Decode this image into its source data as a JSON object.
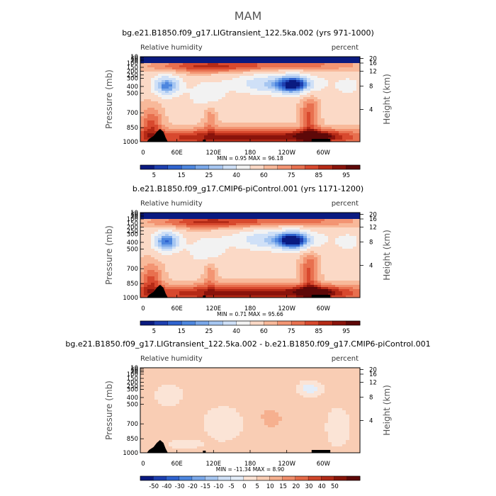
{
  "figure": {
    "title": "MAM"
  },
  "colors": {
    "rh_palette": [
      "#0a1a80",
      "#1d3fb0",
      "#2f63cf",
      "#4d86df",
      "#7aa8ea",
      "#a6c6f1",
      "#cfe0f7",
      "#f2f2f2",
      "#fbd9c6",
      "#f8b99a",
      "#f39573",
      "#e8704f",
      "#d8492e",
      "#b52a16",
      "#8a130b",
      "#5e0808"
    ],
    "diff_palette": [
      "#0a1a80",
      "#1d3fb0",
      "#2f63cf",
      "#4d86df",
      "#7aa8ea",
      "#a6c6f1",
      "#cfe0f7",
      "#e3edf9",
      "#fbe4d6",
      "#f9cdb4",
      "#f6b08f",
      "#f08e6b",
      "#e46a48",
      "#cf452a",
      "#b02a17",
      "#861409",
      "#5e0808"
    ]
  },
  "chart_data": [
    {
      "type": "heatmap",
      "title": "bg.e21.B1850.f09_g17.LIGtransient_122.5ka.002 (yrs 971-1000)",
      "left_label": "Relative humidity",
      "right_label": "percent",
      "ylabel": "Pressure (mb)",
      "y2label": "Height (km)",
      "xticks": [
        "0",
        "60E",
        "120E",
        "180",
        "120W",
        "60W"
      ],
      "yticks": [
        "10",
        "30",
        "50",
        "70",
        "100",
        "150",
        "200",
        "250",
        "300",
        "400",
        "500",
        "700",
        "850",
        "1000"
      ],
      "y2ticks": [
        "20",
        "16",
        "12",
        "8",
        "4"
      ],
      "min_label": "MIN =",
      "min_value": "0.95",
      "max_label": "MAX =",
      "max_value": "96.18",
      "colorbar_labels": [
        "5",
        "15",
        "25",
        "40",
        "60",
        "75",
        "85",
        "95"
      ],
      "palette": "rh",
      "variant": "lig"
    },
    {
      "type": "heatmap",
      "title": "b.e21.B1850.f09_g17.CMIP6-piControl.001 (yrs 1171-1200)",
      "left_label": "Relative humidity",
      "right_label": "percent",
      "ylabel": "Pressure (mb)",
      "y2label": "Height (km)",
      "xticks": [
        "0",
        "60E",
        "120E",
        "180",
        "120W",
        "60W"
      ],
      "yticks": [
        "10",
        "30",
        "50",
        "70",
        "100",
        "150",
        "200",
        "250",
        "300",
        "400",
        "500",
        "700",
        "850",
        "1000"
      ],
      "y2ticks": [
        "20",
        "16",
        "12",
        "8",
        "4"
      ],
      "min_label": "MIN =",
      "min_value": "0.71",
      "max_label": "MAX =",
      "max_value": "95.66",
      "colorbar_labels": [
        "5",
        "15",
        "25",
        "40",
        "60",
        "75",
        "85",
        "95"
      ],
      "palette": "rh",
      "variant": "pi"
    },
    {
      "type": "heatmap",
      "title": "bg.e21.B1850.f09_g17.LIGtransient_122.5ka.002 - b.e21.B1850.f09_g17.CMIP6-piControl.001",
      "left_label": "Relative humidity",
      "right_label": "percent",
      "ylabel": "Pressure (mb)",
      "y2label": "Height (km)",
      "xticks": [
        "0",
        "60E",
        "120E",
        "180",
        "120W",
        "60W"
      ],
      "yticks": [
        "10",
        "30",
        "50",
        "70",
        "100",
        "150",
        "200",
        "250",
        "300",
        "400",
        "500",
        "700",
        "850",
        "1000"
      ],
      "y2ticks": [
        "20",
        "16",
        "12",
        "8",
        "4"
      ],
      "min_label": "MIN =",
      "min_value": "-11.34",
      "max_label": "MAX =",
      "max_value": "8.90",
      "colorbar_labels": [
        "-50",
        "-40",
        "-30",
        "-20",
        "-15",
        "-10",
        "-5",
        "0",
        "5",
        "10",
        "15",
        "20",
        "30",
        "40",
        "50"
      ],
      "palette": "diff",
      "variant": "diff"
    }
  ]
}
